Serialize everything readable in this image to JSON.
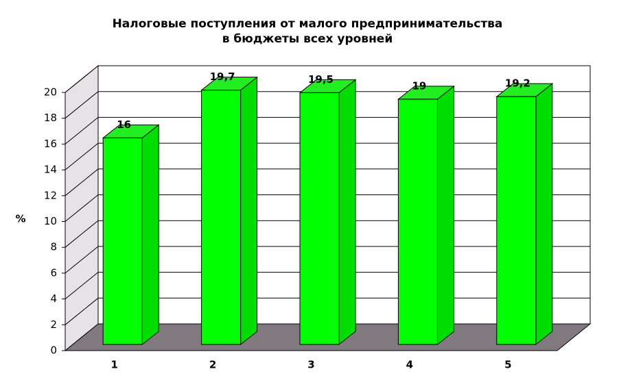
{
  "chart_data": {
    "type": "bar3d",
    "title": [
      "Налоговые поступления от малого предпринимательства",
      "в бюджеты всех уровней"
    ],
    "y_label": "%",
    "categories": [
      "1",
      "2",
      "3",
      "4",
      "5"
    ],
    "values": [
      16,
      19.7,
      19.5,
      19,
      19.2
    ],
    "value_labels": [
      "16",
      "19,7",
      "19,5",
      "19",
      "19,2"
    ],
    "color": "#00ff00",
    "ylim": [
      0,
      20
    ],
    "yticks": [
      0,
      2,
      4,
      6,
      8,
      10,
      12,
      14,
      16,
      18,
      20
    ],
    "grid": true
  }
}
